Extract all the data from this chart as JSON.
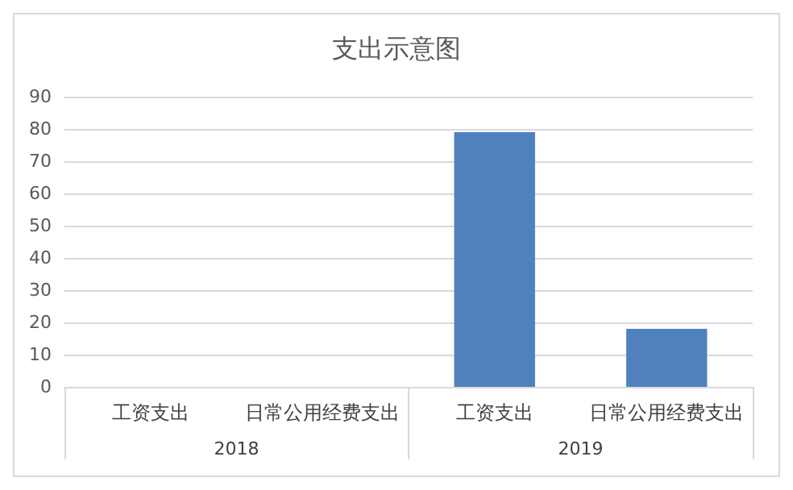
{
  "chart_data": {
    "type": "bar",
    "title": "支出示意图",
    "categories": [
      "工资支出",
      "日常公用经费支出",
      "工资支出",
      "日常公用经费支出"
    ],
    "values": [
      0,
      0,
      79,
      18
    ],
    "color": "#4f81bd",
    "annotations": [
      "2018",
      "2019"
    ],
    "ylim": [
      0,
      90
    ],
    "yticks": [
      0,
      10,
      20,
      30,
      40,
      50,
      60,
      70,
      80,
      90
    ],
    "grid": "y"
  }
}
